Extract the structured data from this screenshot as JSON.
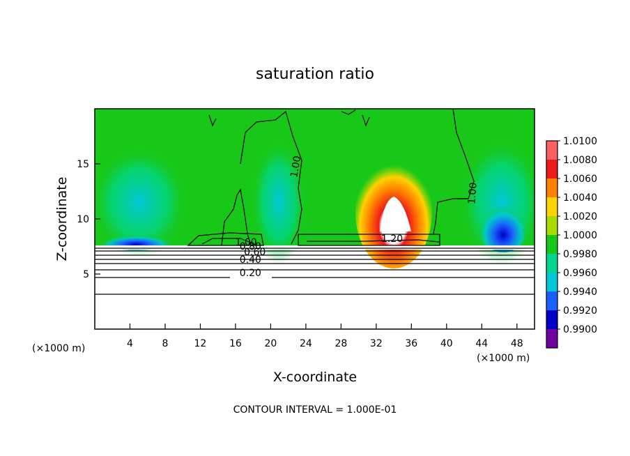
{
  "chart_data": {
    "type": "heatmap",
    "title": "saturation ratio",
    "xlabel": "X-coordinate",
    "ylabel": "Z-coordinate",
    "x_unit_label": "(×1000 m)",
    "y_unit_label": "(×1000 m)",
    "xlim": [
      0,
      50
    ],
    "ylim": [
      0,
      20
    ],
    "x_ticks": [
      4,
      8,
      12,
      16,
      20,
      24,
      28,
      32,
      36,
      40,
      44,
      48
    ],
    "y_ticks": [
      5,
      10,
      15
    ],
    "colorbar": {
      "min": 0.99,
      "max": 1.01,
      "labels": [
        "1.0100",
        "1.0080",
        "1.0060",
        "1.0040",
        "1.0020",
        "1.0000",
        "0.9980",
        "0.9960",
        "0.9940",
        "0.9920",
        "0.9900"
      ],
      "colors": [
        "#ff6060",
        "#ee1a1a",
        "#ff8000",
        "#ffd200",
        "#a8dc00",
        "#18c818",
        "#00d890",
        "#00c8d8",
        "#1a60ff",
        "#0000c8",
        "#7000a0"
      ]
    },
    "contour_labels": [
      {
        "text": "1.00",
        "x": 23.2,
        "y": 14.7,
        "rotation": -80
      },
      {
        "text": "1.00",
        "x": 43.3,
        "y": 12.3,
        "rotation": -85
      },
      {
        "text": "1.20",
        "x": 33.8,
        "y": 7.9,
        "rotation": 0
      },
      {
        "text": "1.00",
        "x": 17.2,
        "y": 7.6,
        "rotation": 0
      },
      {
        "text": "0.80",
        "x": 17.7,
        "y": 7.2,
        "rotation": 0
      },
      {
        "text": "0.60",
        "x": 18.2,
        "y": 6.7,
        "rotation": 0
      },
      {
        "text": "0.40",
        "x": 17.7,
        "y": 6.0,
        "rotation": 0
      },
      {
        "text": "0.20",
        "x": 17.7,
        "y": 4.8,
        "rotation": 0
      }
    ],
    "footer": "CONTOUR INTERVAL = 1.000E-01"
  }
}
